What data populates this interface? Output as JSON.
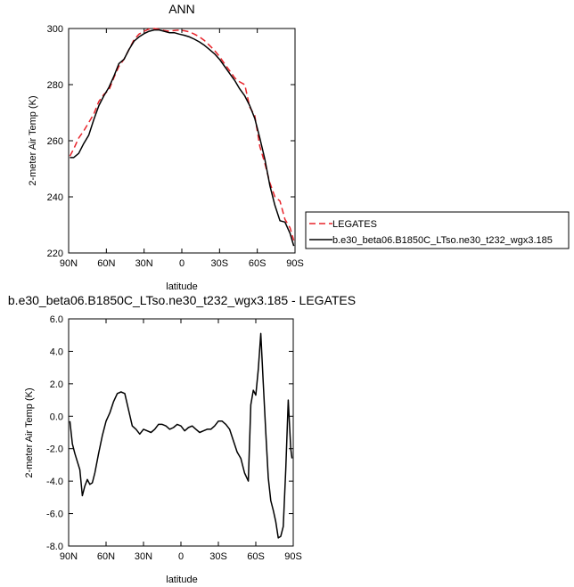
{
  "chart_data": [
    {
      "type": "line",
      "title": "ANN",
      "xlabel": "latitude",
      "ylabel": "2-meter Air Temp (K)",
      "xlim": [
        90,
        -90
      ],
      "ylim": [
        220,
        300
      ],
      "x_ticks": [
        90,
        60,
        30,
        0,
        -30,
        -60,
        -90
      ],
      "x_tick_labels": [
        "90N",
        "60N",
        "30N",
        "0",
        "30S",
        "60S",
        "90S"
      ],
      "y_ticks": [
        220,
        240,
        260,
        280,
        300
      ],
      "y_tick_labels": [
        "220",
        "240",
        "260",
        "280",
        "300"
      ],
      "legend_position": "right",
      "series": [
        {
          "name": "LEGATES",
          "color": "#e8232a",
          "dash": "dashed",
          "x": [
            89,
            86,
            82,
            78,
            74,
            70,
            66,
            62,
            58,
            54,
            50,
            46,
            42,
            38,
            34,
            30,
            26,
            22,
            18,
            14,
            10,
            6,
            2,
            -2,
            -6,
            -10,
            -14,
            -18,
            -22,
            -26,
            -30,
            -34,
            -38,
            -42,
            -46,
            -50,
            -54,
            -58,
            -62,
            -66,
            -70,
            -74,
            -78,
            -82,
            -86,
            -89
          ],
          "y": [
            254.5,
            257.0,
            261.0,
            263.5,
            266.5,
            269.5,
            274.0,
            276.5,
            278.0,
            282.5,
            286.5,
            289.0,
            292.5,
            296.0,
            298.0,
            299.0,
            299.8,
            300.0,
            299.7,
            299.3,
            299.0,
            299.3,
            299.4,
            299.2,
            298.8,
            298.0,
            297.0,
            295.7,
            294.0,
            292.2,
            290.0,
            287.4,
            285.0,
            282.4,
            281.0,
            280.0,
            272.0,
            269.0,
            258.0,
            252.0,
            245.0,
            240.0,
            238.5,
            232.0,
            229.0,
            224.5
          ]
        },
        {
          "name": "b.e30_beta06.B1850C_LTso.ne30_t232_wgx3.185",
          "color": "#000000",
          "dash": "solid",
          "x": [
            89,
            86,
            82,
            78,
            74,
            70,
            66,
            62,
            58,
            54,
            50,
            46,
            42,
            38,
            34,
            30,
            26,
            22,
            18,
            14,
            10,
            6,
            2,
            -2,
            -6,
            -10,
            -14,
            -18,
            -22,
            -26,
            -30,
            -34,
            -38,
            -42,
            -46,
            -50,
            -54,
            -58,
            -62,
            -66,
            -70,
            -74,
            -78,
            -82,
            -86,
            -89
          ],
          "y": [
            254.0,
            254.0,
            255.5,
            259.0,
            262.0,
            267.5,
            272.5,
            276.0,
            279.0,
            283.0,
            287.5,
            289.0,
            292.5,
            295.5,
            297.0,
            298.2,
            299.0,
            299.5,
            299.5,
            299.0,
            298.5,
            298.5,
            298.0,
            297.6,
            297.0,
            296.2,
            295.2,
            294.0,
            292.5,
            291.0,
            289.0,
            286.5,
            284.0,
            281.5,
            278.5,
            276.0,
            272.5,
            268.0,
            261.0,
            253.5,
            244.0,
            237.0,
            231.5,
            231.0,
            227.0,
            222.5
          ]
        }
      ]
    },
    {
      "type": "line",
      "title": "b.e30_beta06.B1850C_LTso.ne30_t232_wgx3.185 - LEGATES",
      "xlabel": "latitude",
      "ylabel": "2-meter Air Temp (K)",
      "xlim": [
        90,
        -90
      ],
      "ylim": [
        -8,
        6
      ],
      "x_ticks": [
        90,
        60,
        30,
        0,
        -30,
        -60,
        -90
      ],
      "x_tick_labels": [
        "90N",
        "60N",
        "30N",
        "0",
        "30S",
        "60S",
        "90S"
      ],
      "y_ticks": [
        -8,
        -6,
        -4,
        -2,
        0,
        2,
        4,
        6
      ],
      "y_tick_labels": [
        "-8.0",
        "-6.0",
        "-4.0",
        "-2.0",
        "0.0",
        "2.0",
        "4.0",
        "6.0"
      ],
      "series": [
        {
          "color": "#000000",
          "dash": "solid",
          "x": [
            89,
            87,
            85,
            83,
            81,
            79,
            77,
            75,
            73,
            71,
            69,
            66,
            63,
            60,
            57,
            54,
            51,
            48,
            45,
            42,
            39,
            36,
            33,
            30,
            27,
            24,
            21,
            18,
            15,
            12,
            9,
            6,
            3,
            0,
            -3,
            -6,
            -9,
            -12,
            -15,
            -18,
            -21,
            -24,
            -27,
            -30,
            -33,
            -36,
            -39,
            -42,
            -45,
            -48,
            -51,
            -54,
            -56,
            -58,
            -60,
            -62,
            -64,
            -66,
            -68,
            -70,
            -72,
            -74,
            -76,
            -78,
            -80,
            -82,
            -84,
            -86,
            -88,
            -89
          ],
          "y": [
            -0.3,
            -1.7,
            -2.3,
            -2.8,
            -3.3,
            -4.9,
            -4.3,
            -3.9,
            -4.2,
            -4.1,
            -3.5,
            -2.3,
            -1.2,
            -0.3,
            0.2,
            0.9,
            1.4,
            1.5,
            1.4,
            0.4,
            -0.6,
            -0.8,
            -1.1,
            -0.8,
            -0.9,
            -1.0,
            -0.8,
            -0.5,
            -0.5,
            -0.6,
            -0.8,
            -0.7,
            -0.5,
            -0.6,
            -0.9,
            -0.7,
            -0.6,
            -0.8,
            -1.0,
            -0.9,
            -0.8,
            -0.8,
            -0.6,
            -0.3,
            -0.3,
            -0.5,
            -0.8,
            -1.5,
            -2.2,
            -2.6,
            -3.5,
            -4.0,
            0.7,
            1.6,
            1.3,
            2.9,
            5.1,
            2.0,
            -1.0,
            -3.8,
            -5.2,
            -5.8,
            -6.5,
            -7.5,
            -7.4,
            -6.8,
            -3.3,
            1.0,
            -2.0,
            -2.6
          ]
        }
      ]
    }
  ]
}
